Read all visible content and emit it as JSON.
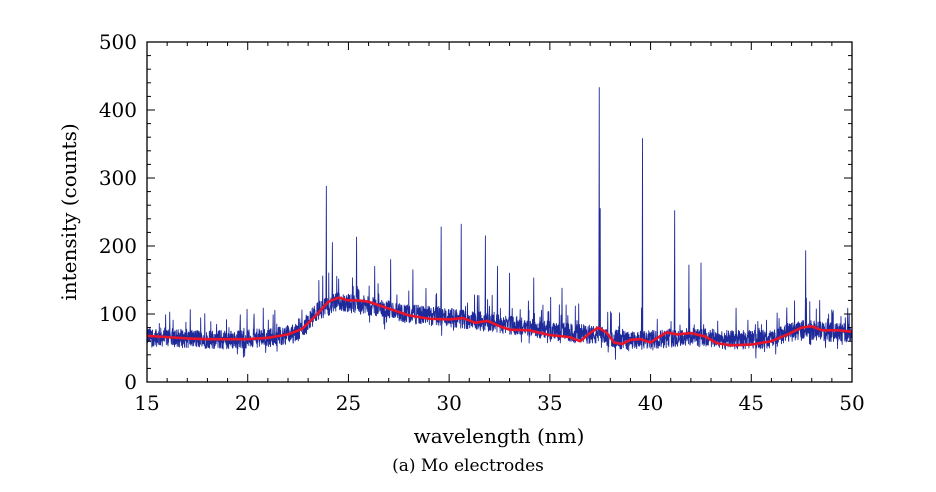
{
  "caption": "(a)  Mo electrodes",
  "chart_data": {
    "type": "line",
    "title": "",
    "xlabel": "wavelength (nm)",
    "ylabel": "intensity (counts)",
    "xlim": [
      15,
      50
    ],
    "ylim": [
      0,
      500
    ],
    "xticks": [
      15,
      20,
      25,
      30,
      35,
      40,
      45,
      50
    ],
    "yticks": [
      0,
      100,
      200,
      300,
      400,
      500
    ],
    "grid": false,
    "legend": "none",
    "series": [
      {
        "style": "noisy-raw",
        "color": "#1f2a9a",
        "baseline_points": [
          [
            15,
            67
          ],
          [
            17,
            64
          ],
          [
            19,
            62
          ],
          [
            21,
            65
          ],
          [
            22.5,
            72
          ],
          [
            23.5,
            105
          ],
          [
            24.5,
            118
          ],
          [
            26,
            112
          ],
          [
            28,
            100
          ],
          [
            30,
            95
          ],
          [
            32,
            88
          ],
          [
            34,
            80
          ],
          [
            36,
            72
          ],
          [
            37,
            70
          ],
          [
            38,
            65
          ],
          [
            39,
            60
          ],
          [
            40,
            62
          ],
          [
            41,
            65
          ],
          [
            42,
            66
          ],
          [
            44,
            62
          ],
          [
            46,
            63
          ],
          [
            47.5,
            78
          ],
          [
            49,
            73
          ],
          [
            50,
            72
          ]
        ],
        "noise_amplitude": 14,
        "peaks": [
          [
            23.9,
            288
          ],
          [
            24.2,
            205
          ],
          [
            25.4,
            213
          ],
          [
            26.3,
            170
          ],
          [
            27.1,
            180
          ],
          [
            28.2,
            165
          ],
          [
            29.6,
            228
          ],
          [
            30.6,
            232
          ],
          [
            31.8,
            215
          ],
          [
            32.4,
            170
          ],
          [
            33.0,
            160
          ],
          [
            34.2,
            153
          ],
          [
            35.6,
            138
          ],
          [
            37.45,
            433
          ],
          [
            37.5,
            255
          ],
          [
            39.6,
            358
          ],
          [
            41.2,
            252
          ],
          [
            41.9,
            172
          ],
          [
            42.5,
            175
          ],
          [
            47.7,
            193
          ],
          [
            48.4,
            120
          ]
        ]
      },
      {
        "style": "smoothed",
        "color": "#e8142a",
        "x": [
          15,
          16,
          17,
          18,
          19,
          20,
          21,
          22,
          22.7,
          23.4,
          24,
          24.5,
          25,
          25.5,
          26,
          27,
          28,
          29,
          30,
          30.7,
          31.3,
          31.9,
          32.5,
          33,
          34,
          35,
          36,
          36.5,
          37,
          37.4,
          37.8,
          38.2,
          38.6,
          39,
          39.5,
          40,
          40.4,
          40.8,
          41.3,
          42,
          42.7,
          43.3,
          44,
          45,
          46,
          46.8,
          47.5,
          48,
          48.5,
          49.3,
          50
        ],
        "y": [
          68,
          66,
          64,
          63,
          63,
          63,
          65,
          70,
          78,
          98,
          118,
          124,
          120,
          120,
          118,
          108,
          98,
          93,
          92,
          94,
          87,
          90,
          82,
          77,
          76,
          69,
          66,
          60,
          72,
          80,
          73,
          58,
          56,
          62,
          63,
          58,
          66,
          73,
          70,
          72,
          67,
          57,
          54,
          55,
          60,
          70,
          80,
          82,
          76,
          76,
          74
        ]
      }
    ]
  }
}
